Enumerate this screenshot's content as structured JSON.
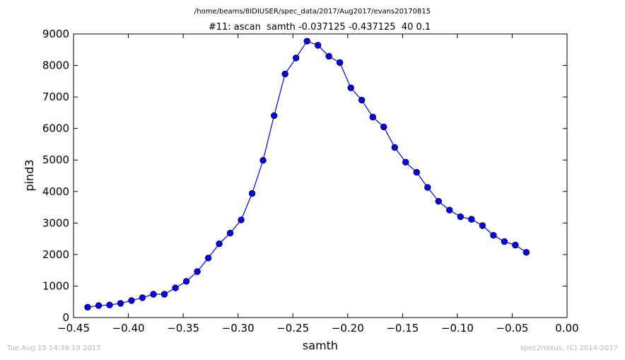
{
  "header": {
    "path": "/home/beams/8IDIUSER/spec_data/2017/Aug2017/evans20170815"
  },
  "footer": {
    "timestamp": "Tue Aug 15 14:38:19 2017",
    "credit": "spec2nexus, (C) 2014-2017"
  },
  "colors": {
    "series": "#0000ff",
    "axes": "#000000",
    "footer_text": "#b8b8b8"
  },
  "chart_data": {
    "type": "line",
    "title": "#11: ascan  samth -0.037125 -0.437125  40 0.1",
    "xlabel": "samth",
    "ylabel": "pind3",
    "xlim": [
      -0.45,
      0.0
    ],
    "ylim": [
      0,
      9000
    ],
    "xticks": [
      -0.45,
      -0.4,
      -0.35,
      -0.3,
      -0.25,
      -0.2,
      -0.15,
      -0.1,
      -0.05,
      0.0
    ],
    "xtick_labels": [
      "−0.45",
      "−0.40",
      "−0.35",
      "−0.30",
      "−0.25",
      "−0.20",
      "−0.15",
      "−0.10",
      "−0.05",
      "0.00"
    ],
    "yticks": [
      0,
      1000,
      2000,
      3000,
      4000,
      5000,
      6000,
      7000,
      8000,
      9000
    ],
    "ytick_labels": [
      "0",
      "1000",
      "2000",
      "3000",
      "4000",
      "5000",
      "6000",
      "7000",
      "8000",
      "9000"
    ],
    "grid": false,
    "marker": "circle",
    "series": [
      {
        "x": [
          -0.437125,
          -0.427125,
          -0.417125,
          -0.407125,
          -0.397125,
          -0.387125,
          -0.377125,
          -0.367125,
          -0.357125,
          -0.347125,
          -0.337125,
          -0.327125,
          -0.317125,
          -0.307125,
          -0.297125,
          -0.287125,
          -0.277125,
          -0.267125,
          -0.257125,
          -0.247125,
          -0.237125,
          -0.227125,
          -0.217125,
          -0.207125,
          -0.197125,
          -0.187125,
          -0.177125,
          -0.167125,
          -0.157125,
          -0.147125,
          -0.137125,
          -0.127125,
          -0.117125,
          -0.107125,
          -0.097125,
          -0.087125,
          -0.077125,
          -0.067125,
          -0.057125,
          -0.047125,
          -0.037125
        ],
        "values": [
          330,
          380,
          400,
          450,
          540,
          630,
          740,
          740,
          940,
          1150,
          1460,
          1890,
          2340,
          2680,
          3100,
          3940,
          4990,
          6410,
          7730,
          8240,
          8770,
          8640,
          8290,
          8090,
          7290,
          6900,
          6360,
          6050,
          5400,
          4930,
          4610,
          4130,
          3690,
          3410,
          3200,
          3120,
          2920,
          2610,
          2410,
          2300,
          2070
        ]
      }
    ]
  }
}
